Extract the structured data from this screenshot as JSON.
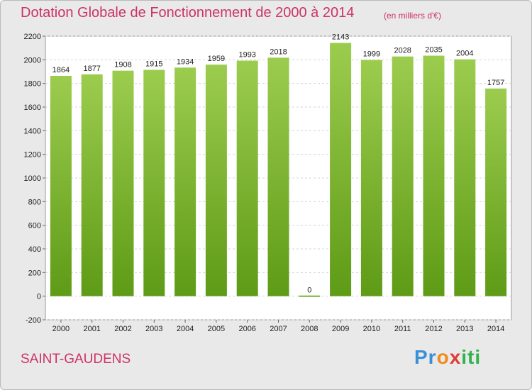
{
  "header": {
    "title": "Dotation Globale de Fonctionnement de 2000 à 2014",
    "subtitle": "(en milliers d'€)"
  },
  "footer": {
    "place": "SAINT-GAUDENS",
    "logo": {
      "p": "Pr",
      "o": "o",
      "x": "x",
      "iti": "iti"
    }
  },
  "colors": {
    "bar_light": "#9ccc4e",
    "bar_dark": "#5e9b16",
    "title": "#cc3366",
    "plot_bg": "#ffffff"
  },
  "chart_data": {
    "type": "bar",
    "title": "Dotation Globale de Fonctionnement de 2000 à 2014",
    "subtitle": "(en milliers d'€)",
    "categories": [
      "2000",
      "2001",
      "2002",
      "2003",
      "2004",
      "2005",
      "2006",
      "2007",
      "2008",
      "2009",
      "2010",
      "2011",
      "2012",
      "2013",
      "2014"
    ],
    "values": [
      1864,
      1877,
      1908,
      1915,
      1934,
      1959,
      1993,
      2018,
      0,
      2143,
      1999,
      2028,
      2035,
      2004,
      1757
    ],
    "ylim": [
      -200,
      2200
    ],
    "yticks": [
      -200,
      0,
      200,
      400,
      600,
      800,
      1000,
      1200,
      1400,
      1600,
      1800,
      2000,
      2200
    ],
    "grid": true
  }
}
